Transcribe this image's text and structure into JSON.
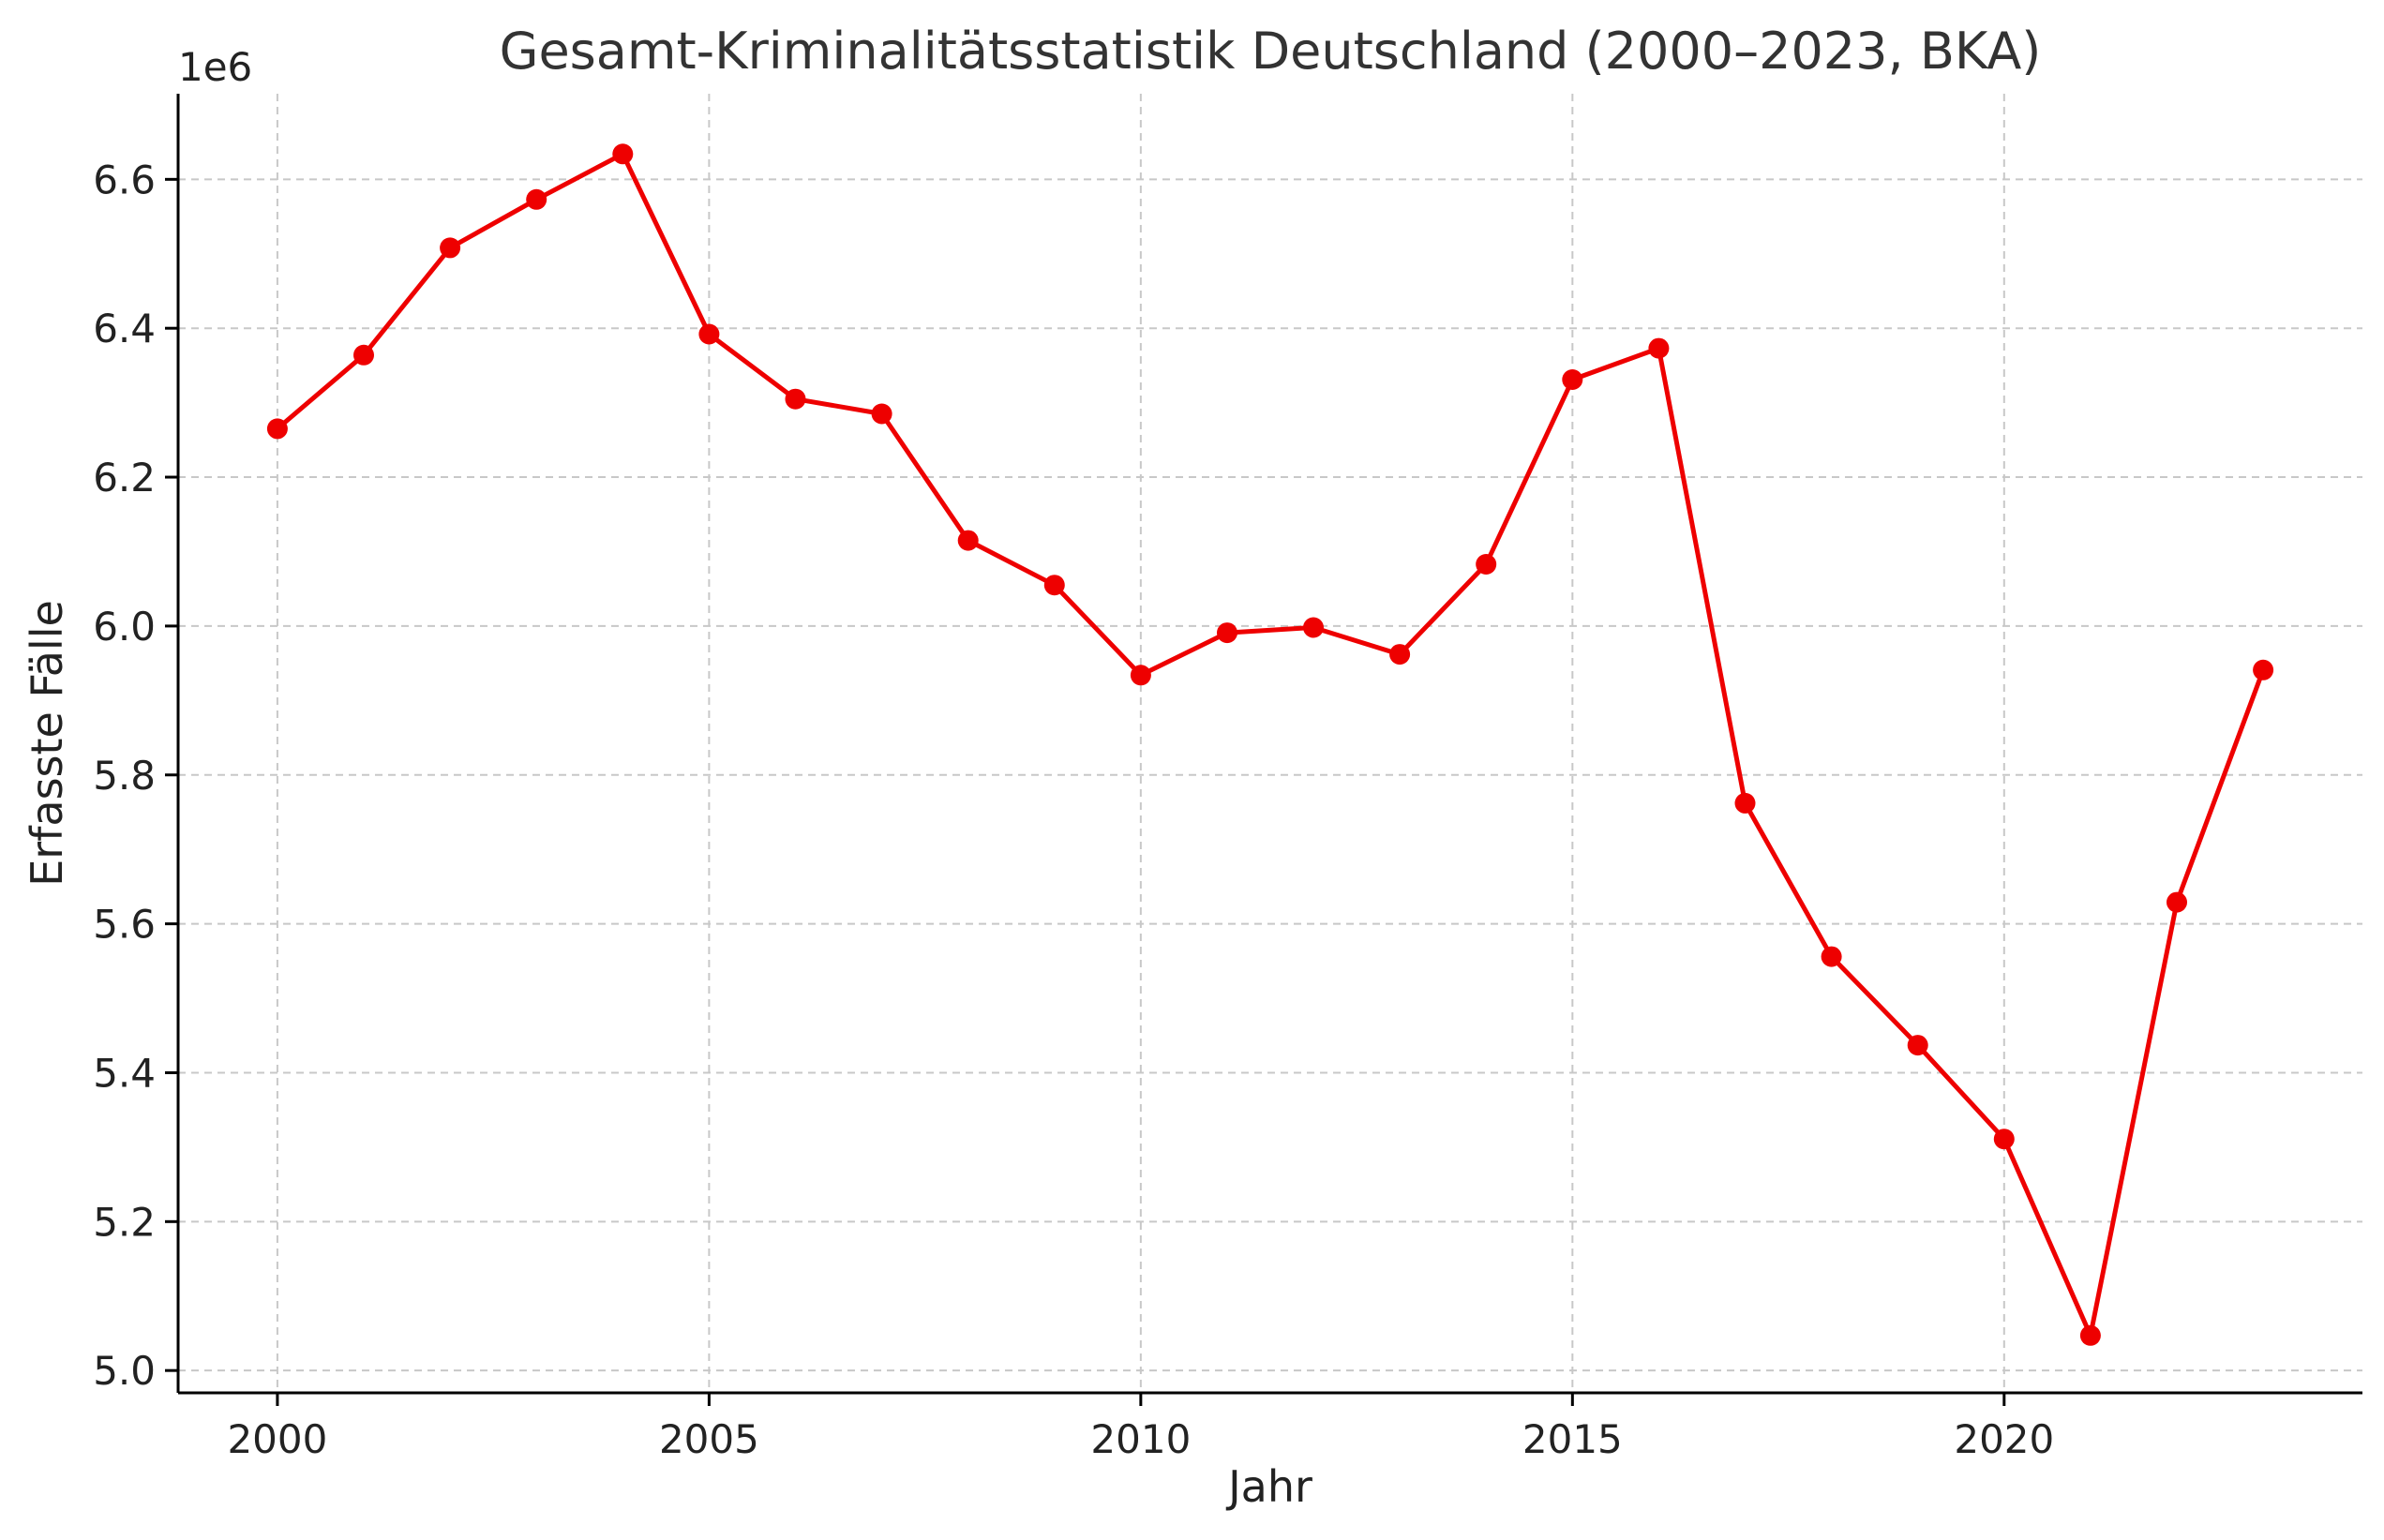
{
  "chart_data": {
    "type": "line",
    "title": "Gesamt-Kriminalitätsstatistik Deutschland (2000–2023, BKA)",
    "xlabel": "Jahr",
    "ylabel": "Erfasste Fälle",
    "y_offset_label": "1e6",
    "xlim": [
      1998.85,
      2024.15
    ],
    "ylim": [
      4.97,
      6.715
    ],
    "x_ticks": [
      2000,
      2005,
      2010,
      2015,
      2020
    ],
    "x_tick_labels": [
      "2000",
      "2005",
      "2010",
      "2015",
      "2020"
    ],
    "y_ticks": [
      5.0,
      5.2,
      5.4,
      5.6,
      5.8,
      6.0,
      6.2,
      6.4,
      6.6
    ],
    "y_tick_labels": [
      "5.0",
      "5.2",
      "5.4",
      "5.6",
      "5.8",
      "6.0",
      "6.2",
      "6.4",
      "6.6"
    ],
    "grid": true,
    "color": "#ee0000",
    "x": [
      2000,
      2001,
      2002,
      2003,
      2004,
      2005,
      2006,
      2007,
      2008,
      2009,
      2010,
      2011,
      2012,
      2013,
      2014,
      2015,
      2016,
      2017,
      2018,
      2019,
      2020,
      2021,
      2022,
      2023
    ],
    "values": [
      6.265,
      6.364,
      6.508,
      6.573,
      6.634,
      6.392,
      6.305,
      6.285,
      6.115,
      6.055,
      5.934,
      5.991,
      5.998,
      5.962,
      6.083,
      6.331,
      6.373,
      5.762,
      5.556,
      5.437,
      5.311,
      5.047,
      5.629,
      5.941
    ]
  }
}
